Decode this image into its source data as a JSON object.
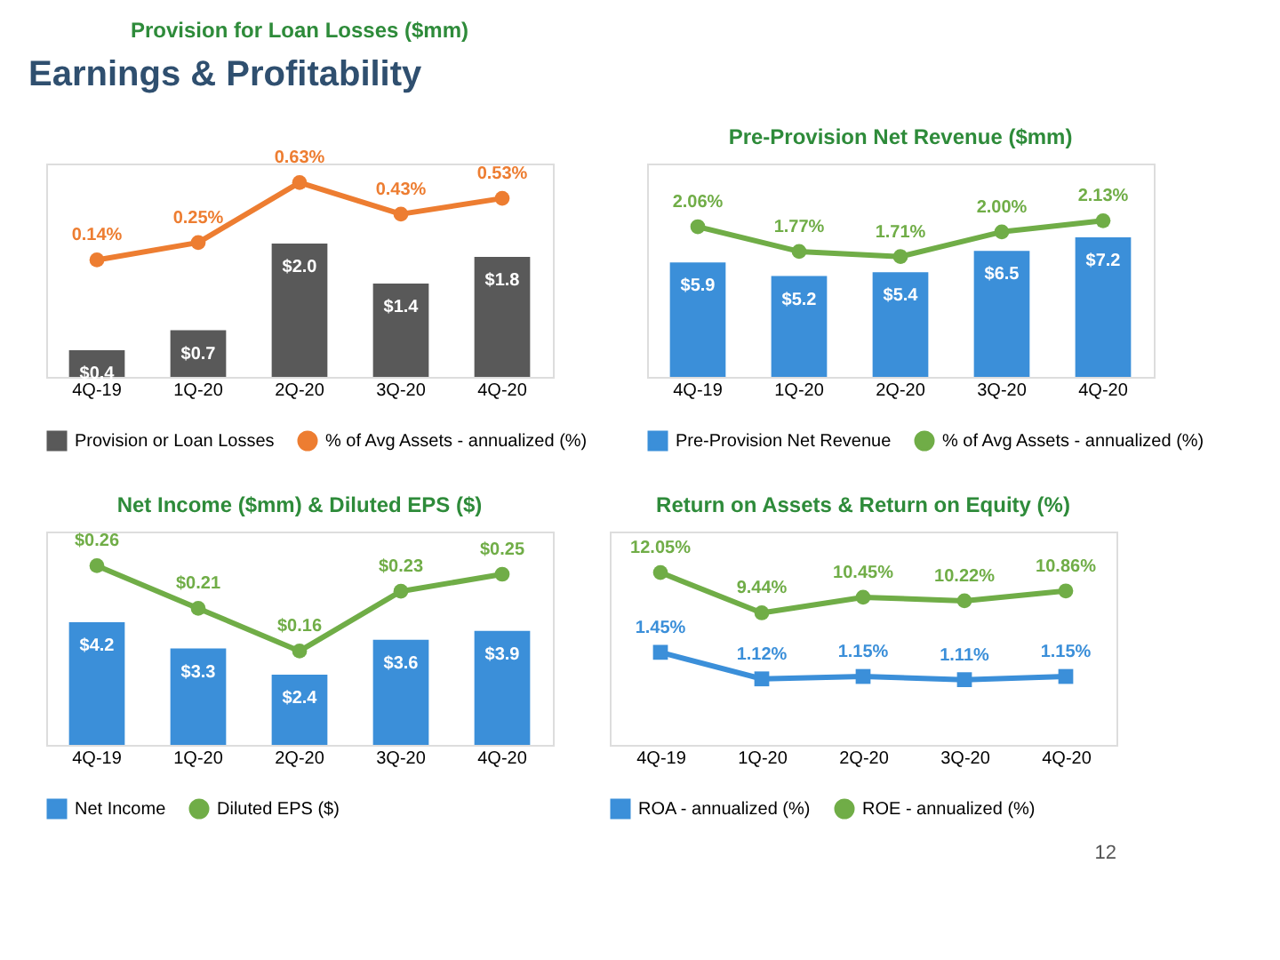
{
  "chart_data": [
    {
      "type": "bar",
      "title": "Provision for Loan Losses ($mm)",
      "annotations": [
        "Earnings & Profitability"
      ],
      "categories": [
        "4Q-19",
        "1Q-20",
        "2Q-20",
        "3Q-20",
        "4Q-20"
      ],
      "ylim": [
        0,
        3.2
      ],
      "y2lim": [
        -0.6,
        0.75
      ],
      "tick_labels": "x",
      "legend": "bottom",
      "series": [
        {
          "name": "Provision or Loan Losses",
          "type": "bar",
          "color": "#595959",
          "values": [
            0.4,
            0.7,
            2.0,
            1.4,
            1.8
          ],
          "value_labels": [
            "$0.4",
            "$0.7",
            "$2.0",
            "$1.4",
            "$1.8"
          ]
        },
        {
          "name": "% of Avg Assets - annualized (%)",
          "type": "line",
          "axis": "y2",
          "marker": "circle",
          "color": "#ed7d31",
          "values": [
            0.14,
            0.25,
            0.63,
            0.43,
            0.53
          ],
          "value_labels": [
            "0.14%",
            "0.25%",
            "0.63%",
            "0.43%",
            "0.53%"
          ]
        }
      ]
    },
    {
      "type": "bar",
      "title": "Pre-Provision Net Revenue ($mm)",
      "categories": [
        "4Q-19",
        "1Q-20",
        "2Q-20",
        "3Q-20",
        "4Q-20"
      ],
      "ylim": [
        0,
        11
      ],
      "y2lim": [
        0.3,
        2.8
      ],
      "tick_labels": "x",
      "legend": "bottom",
      "series": [
        {
          "name": "Pre-Provision Net Revenue",
          "type": "bar",
          "color": "#3b8fd9",
          "values": [
            5.9,
            5.2,
            5.4,
            6.5,
            7.2
          ],
          "value_labels": [
            "$5.9",
            "$5.2",
            "$5.4",
            "$6.5",
            "$7.2"
          ]
        },
        {
          "name": "% of Avg Assets - annualized (%)",
          "type": "line",
          "axis": "y2",
          "marker": "circle",
          "color": "#70ad47",
          "values": [
            2.06,
            1.77,
            1.71,
            2.0,
            2.13
          ],
          "value_labels": [
            "2.06%",
            "1.77%",
            "1.71%",
            "2.00%",
            "2.13%"
          ]
        }
      ]
    },
    {
      "type": "bar",
      "title": "Net Income ($mm) & Diluted EPS ($)",
      "categories": [
        "4Q-19",
        "1Q-20",
        "2Q-20",
        "3Q-20",
        "4Q-20"
      ],
      "ylim": [
        0,
        7.3
      ],
      "y2lim": [
        0.05,
        0.3
      ],
      "tick_labels": "x",
      "legend": "bottom",
      "series": [
        {
          "name": "Net Income",
          "type": "bar",
          "color": "#3b8fd9",
          "values": [
            4.2,
            3.3,
            2.4,
            3.6,
            3.9
          ],
          "value_labels": [
            "$4.2",
            "$3.3",
            "$2.4",
            "$3.6",
            "$3.9"
          ]
        },
        {
          "name": "Diluted EPS ($)",
          "type": "line",
          "axis": "y2",
          "marker": "circle",
          "color": "#70ad47",
          "values": [
            0.26,
            0.21,
            0.16,
            0.23,
            0.25
          ],
          "value_labels": [
            "$0.26",
            "$0.21",
            "$0.16",
            "$0.23",
            "$0.25"
          ]
        }
      ]
    },
    {
      "type": "line",
      "title": "Return on Assets & Return on Equity (%)",
      "annotations": [
        "12"
      ],
      "categories": [
        "4Q-19",
        "1Q-20",
        "2Q-20",
        "3Q-20",
        "4Q-20"
      ],
      "ylim": [
        0.3,
        2.95
      ],
      "y2lim": [
        0.9,
        14.7
      ],
      "tick_labels": "x",
      "legend": "bottom",
      "series": [
        {
          "name": "ROA - annualized (%)",
          "type": "line",
          "marker": "square",
          "color": "#3b8fd9",
          "values": [
            1.45,
            1.12,
            1.15,
            1.11,
            1.15
          ],
          "value_labels": [
            "1.45%",
            "1.12%",
            "1.15%",
            "1.11%",
            "1.15%"
          ]
        },
        {
          "name": "ROE - annualized (%)",
          "type": "line",
          "axis": "y2",
          "marker": "circle",
          "color": "#70ad47",
          "values": [
            12.05,
            9.44,
            10.45,
            10.22,
            10.86
          ],
          "value_labels": [
            "12.05%",
            "9.44%",
            "10.45%",
            "10.22%",
            "10.86%"
          ]
        }
      ]
    }
  ]
}
